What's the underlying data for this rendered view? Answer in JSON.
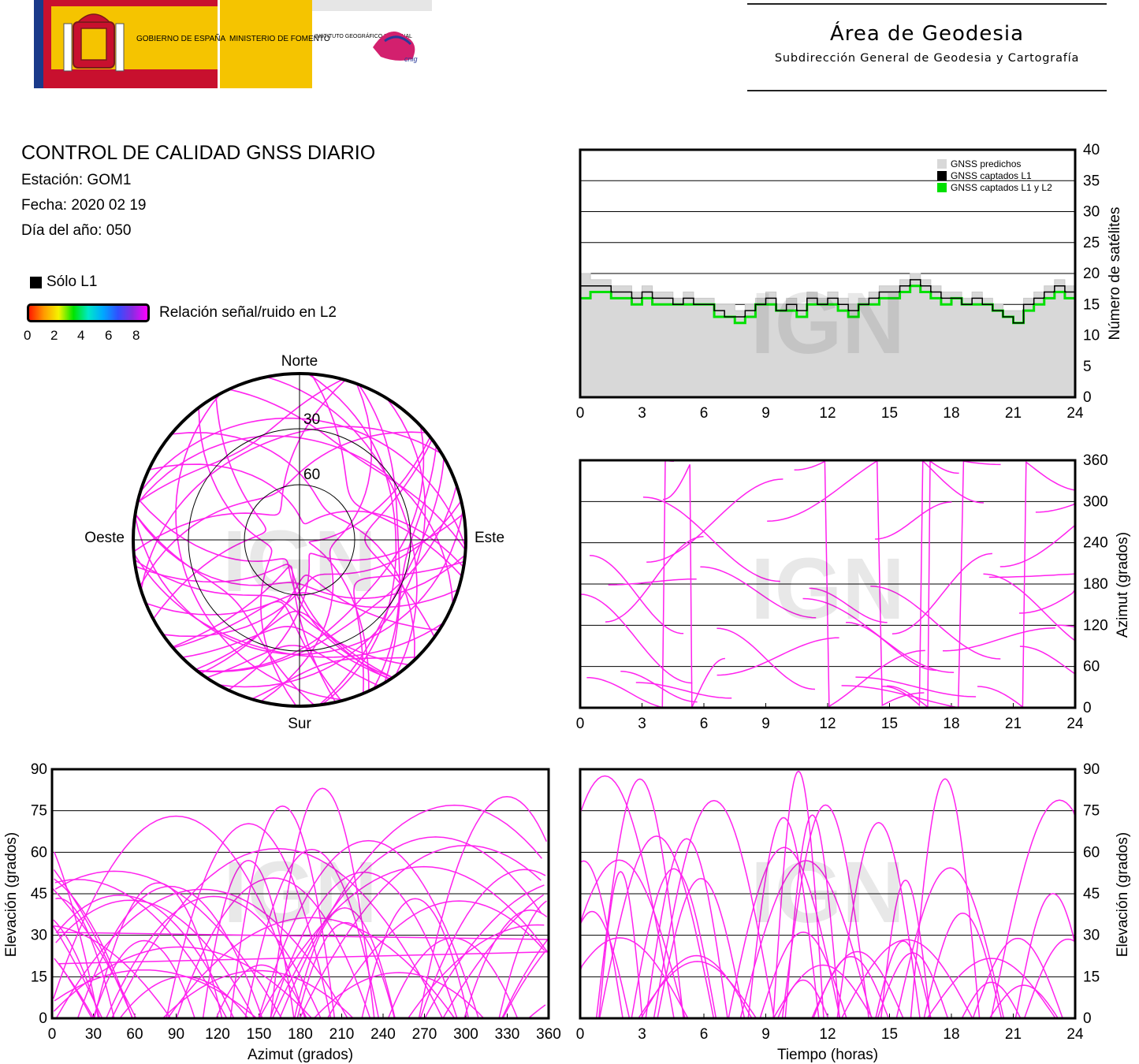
{
  "header": {
    "logo_text": [
      "GOBIERNO DE ESPAÑA",
      "MINISTERIO DE FOMENTO",
      "INSTITUTO GEOGRÁFICO NACIONAL",
      "cnig"
    ],
    "area_title": "Área de Geodesia",
    "area_subtitle": "Subdirección General de Geodesia y Cartografía"
  },
  "report": {
    "title": "CONTROL DE CALIDAD GNSS DIARIO",
    "station": "Estación: GOM1",
    "date": "Fecha: 2020 02 19",
    "doy": "Día del año: 050"
  },
  "legend": {
    "l1_only": "Sólo L1",
    "snr_label": "Relación señal/ruido en L2",
    "snr_ticks": [
      "0",
      "2",
      "4",
      "6",
      "8"
    ],
    "colors": {
      "l1": "#000000",
      "snr_high": "#ff00ff",
      "snr_mid": "#3050ff",
      "predicted": "#d8d8d8",
      "l1l2": "#00e000"
    }
  },
  "watermark": "IGN",
  "chart_data": [
    {
      "type": "scatter",
      "name": "skyplot",
      "labels": {
        "north": "Norte",
        "south": "Sur",
        "west": "Oeste",
        "east": "Este"
      },
      "rings": [
        "30",
        "60"
      ],
      "passes_description_values": {
        "magenta_count": 42
      }
    },
    {
      "type": "area",
      "name": "satellites",
      "xlim": [
        0,
        24
      ],
      "ylim": [
        0,
        40
      ],
      "xticks": [
        "0",
        "3",
        "6",
        "9",
        "12",
        "15",
        "18",
        "21",
        "24"
      ],
      "yticks": [
        "0",
        "5",
        "10",
        "15",
        "20",
        "25",
        "30",
        "35",
        "40"
      ],
      "ylabel": "Número de satélites",
      "legend": [
        "GNSS predichos",
        "GNSS captados L1",
        "GNSS captados L1 y L2"
      ],
      "x": [
        0,
        0.5,
        1,
        1.5,
        2,
        2.5,
        3,
        3.5,
        4,
        4.5,
        5,
        5.5,
        6,
        6.5,
        7,
        7.5,
        8,
        8.5,
        9,
        9.5,
        10,
        10.5,
        11,
        11.5,
        12,
        12.5,
        13,
        13.5,
        14,
        14.5,
        15,
        15.5,
        16,
        16.5,
        17,
        17.5,
        18,
        18.5,
        19,
        19.5,
        20,
        20.5,
        21,
        21.5,
        22,
        22.5,
        23,
        23.5,
        24
      ],
      "predicted": [
        20,
        19,
        19,
        18,
        18,
        17,
        18,
        17,
        17,
        16,
        17,
        16,
        16,
        15,
        15,
        14,
        15,
        16,
        17,
        15,
        16,
        15,
        17,
        16,
        17,
        16,
        15,
        16,
        17,
        18,
        18,
        19,
        20,
        19,
        18,
        17,
        17,
        16,
        17,
        16,
        15,
        14,
        14,
        16,
        17,
        18,
        19,
        18,
        18
      ],
      "l1": [
        18,
        18,
        18,
        17,
        17,
        16,
        17,
        16,
        16,
        15,
        16,
        15,
        15,
        14,
        13,
        13,
        14,
        15,
        16,
        14,
        15,
        14,
        16,
        15,
        16,
        15,
        14,
        15,
        16,
        17,
        17,
        18,
        19,
        18,
        17,
        16,
        16,
        15,
        16,
        15,
        14,
        13,
        12,
        15,
        16,
        17,
        18,
        17,
        16
      ],
      "l1l2": [
        16,
        17,
        17,
        16,
        16,
        15,
        16,
        15,
        15,
        15,
        15,
        15,
        15,
        13,
        13,
        12,
        13,
        15,
        15,
        14,
        14,
        13,
        15,
        15,
        15,
        14,
        13,
        15,
        15,
        16,
        16,
        17,
        18,
        17,
        16,
        15,
        16,
        15,
        15,
        15,
        14,
        13,
        12,
        14,
        15,
        16,
        17,
        16,
        15
      ]
    },
    {
      "type": "scatter",
      "name": "azimuth_time",
      "xlim": [
        0,
        24
      ],
      "ylim": [
        0,
        360
      ],
      "xticks": [
        "0",
        "3",
        "6",
        "9",
        "12",
        "15",
        "18",
        "21",
        "24"
      ],
      "yticks": [
        "0",
        "60",
        "120",
        "180",
        "240",
        "300",
        "360"
      ],
      "ylabel": "Azimut (grados)"
    },
    {
      "type": "scatter",
      "name": "elevation_azimuth",
      "xlim": [
        0,
        360
      ],
      "ylim": [
        0,
        90
      ],
      "xticks": [
        "0",
        "30",
        "60",
        "90",
        "120",
        "150",
        "180",
        "210",
        "240",
        "270",
        "300",
        "330",
        "360"
      ],
      "yticks": [
        "0",
        "15",
        "30",
        "45",
        "60",
        "75",
        "90"
      ],
      "xlabel": "Azimut (grados)",
      "ylabel": "Elevación (grados)"
    },
    {
      "type": "scatter",
      "name": "elevation_time",
      "xlim": [
        0,
        24
      ],
      "ylim": [
        0,
        90
      ],
      "xticks": [
        "0",
        "3",
        "6",
        "9",
        "12",
        "15",
        "18",
        "21",
        "24"
      ],
      "yticks": [
        "0",
        "15",
        "30",
        "45",
        "60",
        "75",
        "90"
      ],
      "xlabel": "Tiempo (horas)",
      "ylabel": "Elevación (grados)"
    }
  ]
}
